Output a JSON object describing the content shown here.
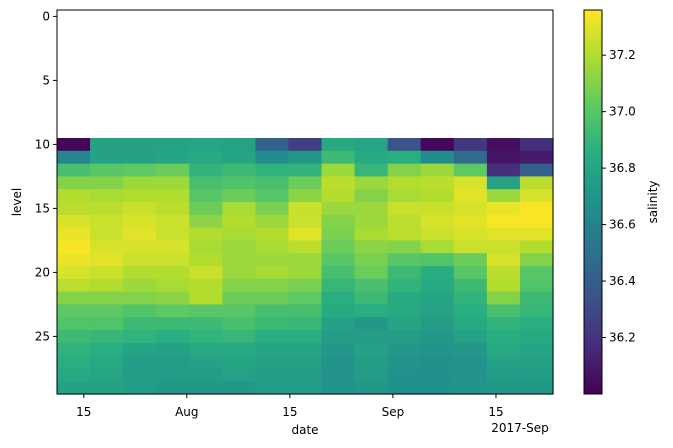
{
  "chart_data": {
    "type": "heatmap",
    "title": "",
    "xlabel": "date",
    "ylabel": "level",
    "colorbar_label": "salinity",
    "colormap": "viridis",
    "color_range": [
      36.0,
      37.36
    ],
    "x_tick_labels": [
      "15",
      "Aug",
      "15",
      "Sep",
      "15",
      "2017-Sep"
    ],
    "y_ticks": [
      0,
      5,
      10,
      15,
      20,
      25
    ],
    "y_range": [
      -0.5,
      29.5
    ],
    "colorbar_ticks": [
      "36.2",
      "36.4",
      "36.6",
      "36.8",
      "37.0",
      "37.2"
    ],
    "colorbar_tick_values": [
      36.2,
      36.4,
      36.6,
      36.8,
      37.0,
      37.2
    ],
    "level_start": 10,
    "columns": 15,
    "rows": [
      [
        36.02,
        36.78,
        36.78,
        36.78,
        36.8,
        36.78,
        36.42,
        36.25,
        36.82,
        36.8,
        36.35,
        36.02,
        36.22,
        36.05,
        36.18
      ],
      [
        36.62,
        36.78,
        36.78,
        36.8,
        36.82,
        36.8,
        36.65,
        36.72,
        36.92,
        36.82,
        36.85,
        36.65,
        36.48,
        36.08,
        36.1
      ],
      [
        36.95,
        37.0,
        37.02,
        37.05,
        36.88,
        36.92,
        36.88,
        36.88,
        37.15,
        36.9,
        37.1,
        37.15,
        37.02,
        36.18,
        36.42
      ],
      [
        37.1,
        37.1,
        37.15,
        37.15,
        36.95,
        36.98,
        36.95,
        37.05,
        37.22,
        37.15,
        37.2,
        37.22,
        37.28,
        36.78,
        37.22
      ],
      [
        37.2,
        37.18,
        37.2,
        37.2,
        37.0,
        37.05,
        37.0,
        37.12,
        37.2,
        37.1,
        37.18,
        37.2,
        37.3,
        37.15,
        37.28
      ],
      [
        37.22,
        37.22,
        37.25,
        37.22,
        37.05,
        37.18,
        37.08,
        37.25,
        37.15,
        37.15,
        37.25,
        37.25,
        37.28,
        37.32,
        37.35
      ],
      [
        37.28,
        37.25,
        37.28,
        37.25,
        37.12,
        37.2,
        37.15,
        37.25,
        37.1,
        37.15,
        37.22,
        37.28,
        37.3,
        37.35,
        37.35
      ],
      [
        37.32,
        37.25,
        37.3,
        37.25,
        37.2,
        37.18,
        37.2,
        37.3,
        37.08,
        37.18,
        37.22,
        37.25,
        37.28,
        37.3,
        37.3
      ],
      [
        37.35,
        37.28,
        37.28,
        37.28,
        37.18,
        37.15,
        37.18,
        37.22,
        37.05,
        37.12,
        37.1,
        37.18,
        37.25,
        37.25,
        37.2
      ],
      [
        37.32,
        37.3,
        37.25,
        37.25,
        37.2,
        37.15,
        37.15,
        37.15,
        37.0,
        37.08,
        37.0,
        36.98,
        37.05,
        37.28,
        37.1
      ],
      [
        37.28,
        37.25,
        37.2,
        37.2,
        37.25,
        37.15,
        37.18,
        37.15,
        36.95,
        37.05,
        36.92,
        36.85,
        37.0,
        37.22,
        37.0
      ],
      [
        37.22,
        37.2,
        37.15,
        37.18,
        37.2,
        37.1,
        37.1,
        37.08,
        36.9,
        36.95,
        36.88,
        36.82,
        36.92,
        37.2,
        36.98
      ],
      [
        37.1,
        37.1,
        37.1,
        37.12,
        37.2,
        37.05,
        37.05,
        37.02,
        36.85,
        36.92,
        36.82,
        36.8,
        36.88,
        37.1,
        36.92
      ],
      [
        37.02,
        37.02,
        36.98,
        37.02,
        37.0,
        37.0,
        36.95,
        36.95,
        36.82,
        36.85,
        36.82,
        36.78,
        36.85,
        36.95,
        36.9
      ],
      [
        36.98,
        36.98,
        36.92,
        36.92,
        36.92,
        36.95,
        36.92,
        36.9,
        36.78,
        36.72,
        36.8,
        36.75,
        36.82,
        36.88,
        36.85
      ],
      [
        36.92,
        36.9,
        36.88,
        36.85,
        36.88,
        36.9,
        36.85,
        36.85,
        36.75,
        36.75,
        36.75,
        36.72,
        36.78,
        36.85,
        36.82
      ],
      [
        36.88,
        36.85,
        36.8,
        36.78,
        36.82,
        36.82,
        36.8,
        36.8,
        36.72,
        36.78,
        36.72,
        36.7,
        36.72,
        36.82,
        36.8
      ],
      [
        36.85,
        36.82,
        36.75,
        36.75,
        36.78,
        36.8,
        36.78,
        36.78,
        36.7,
        36.75,
        36.7,
        36.68,
        36.7,
        36.78,
        36.78
      ],
      [
        36.82,
        36.8,
        36.75,
        36.75,
        36.75,
        36.78,
        36.75,
        36.75,
        36.7,
        36.75,
        36.68,
        36.68,
        36.7,
        36.75,
        36.75
      ],
      [
        36.78,
        36.78,
        36.75,
        36.72,
        36.72,
        36.72,
        36.75,
        36.75,
        36.7,
        36.72,
        36.68,
        36.68,
        36.7,
        36.72,
        36.72
      ]
    ]
  }
}
